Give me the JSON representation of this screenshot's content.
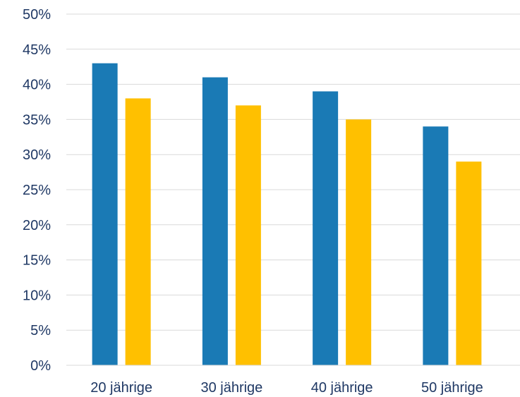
{
  "chart_data": {
    "type": "bar",
    "categories": [
      "20 jährige",
      "30 jährige",
      "40 jährige",
      "50 jährige"
    ],
    "series": [
      {
        "values": [
          0.43,
          0.41,
          0.39,
          0.34
        ],
        "color": "#1a7ab5"
      },
      {
        "values": [
          0.38,
          0.37,
          0.35,
          0.29
        ],
        "color": "#ffc000"
      }
    ],
    "ylim": [
      0,
      0.5
    ],
    "yticks": [
      0,
      0.05,
      0.1,
      0.15,
      0.2,
      0.25,
      0.3,
      0.35,
      0.4,
      0.45,
      0.5
    ],
    "ytick_labels": [
      "0%",
      "5%",
      "10%",
      "15%",
      "20%",
      "25%",
      "30%",
      "35%",
      "40%",
      "45%",
      "50%"
    ],
    "grid": true,
    "legend": "none"
  }
}
